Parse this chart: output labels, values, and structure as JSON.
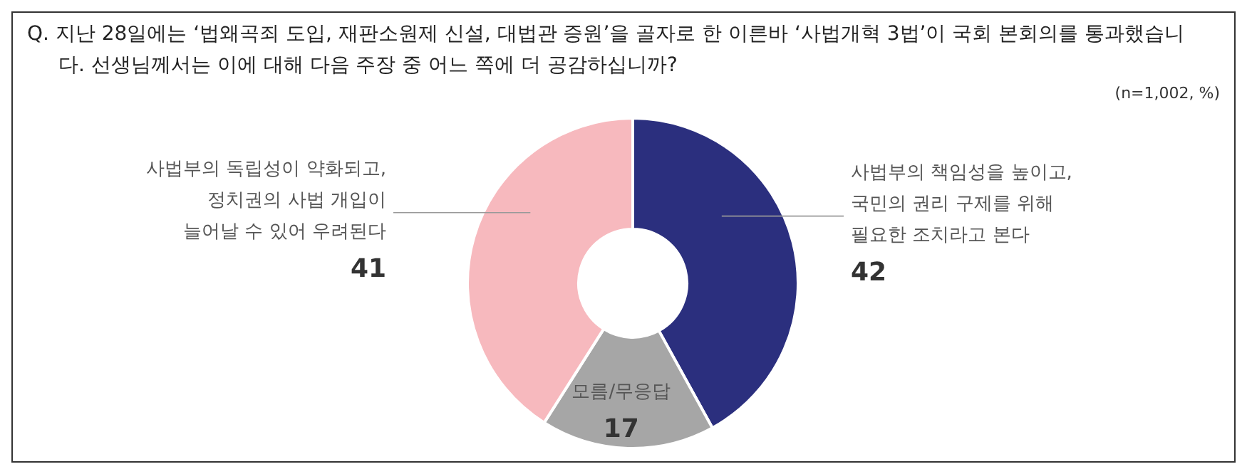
{
  "chart_data": {
    "type": "donut",
    "title": "Q. 지난 28일에는 ‘법왜곡죄 도입, 재판소원제 신설, 대법관 증원’을 골자로 한 이른바 ‘사법개혁 3법’이 국회 본회의를 통과했습니다. 선생님께서는 이에 대해 다음 주장 중 어느 쪽에 더 공감하십니까?",
    "subtitle": "(n=1,002, %)",
    "categories": [
      "사법부의 책임성을 높이고,\n국민의 권리 구제를 위해\n필요한 조치라고 본다",
      "모름/무응답",
      "사법부의 독립성이 약화되고,\n정치권의 사법 개입이\n늘어날 수 있어 우려된다"
    ],
    "values": [
      42,
      17,
      41
    ],
    "colors": [
      "#2b2f7e",
      "#a6a6a6",
      "#f7b9be"
    ],
    "data_labels": true,
    "legend": false
  }
}
